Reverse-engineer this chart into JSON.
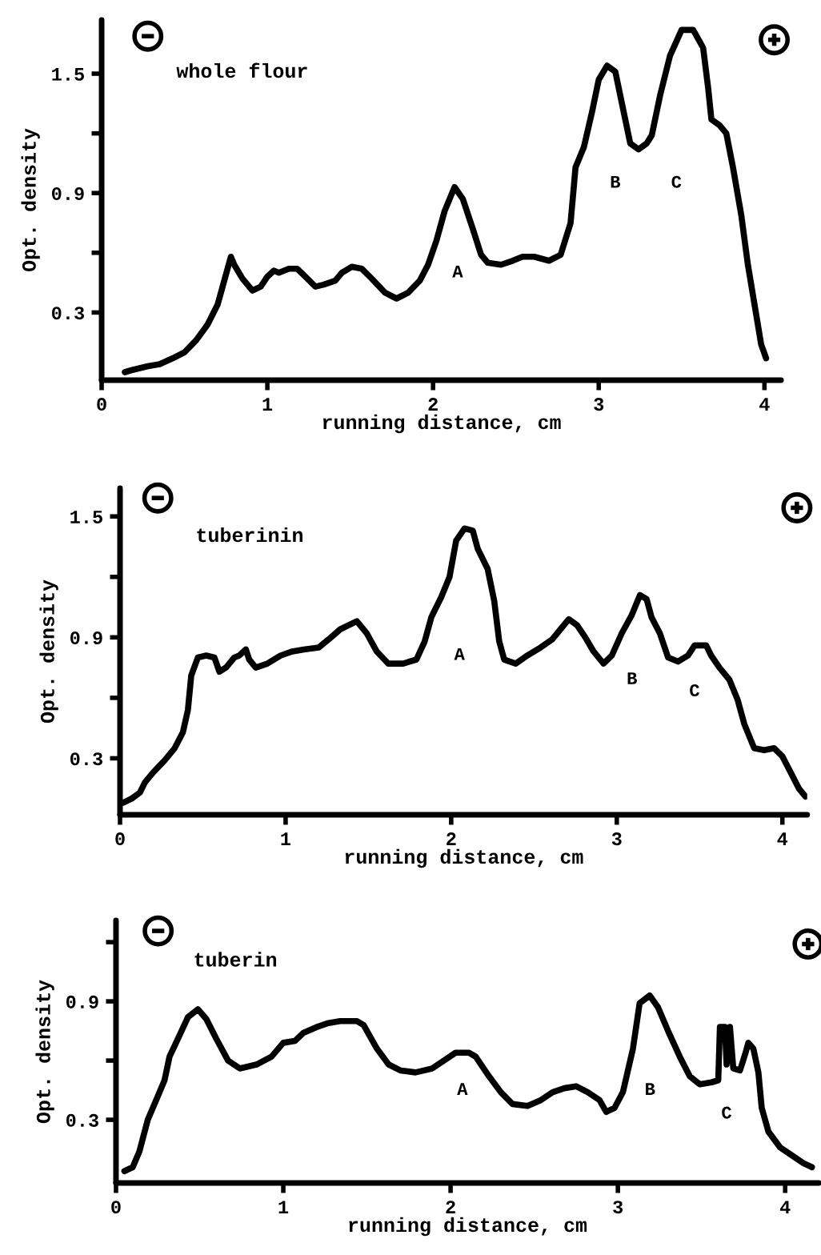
{
  "chart_data": [
    {
      "type": "line",
      "title": "whole flour",
      "xlabel": "running distance, cm",
      "ylabel": "Opt. density",
      "xlim": [
        0,
        4.1
      ],
      "ylim": [
        -0.04,
        1.77
      ],
      "xticks": [
        0,
        1,
        2,
        3,
        4
      ],
      "yticks": [
        {
          "value": 0.3,
          "label": "0.3"
        },
        {
          "value": 0.6,
          "label": null
        },
        {
          "value": 0.9,
          "label": "0.9"
        },
        {
          "value": 1.2,
          "label": null
        },
        {
          "value": 1.5,
          "label": "1.5"
        }
      ],
      "grid": false,
      "series": [
        {
          "color": "#000000",
          "x": [
            0.14,
            0.18,
            0.28,
            0.35,
            0.43,
            0.5,
            0.57,
            0.64,
            0.7,
            0.74,
            0.78,
            0.8,
            0.85,
            0.91,
            0.96,
            1.0,
            1.04,
            1.07,
            1.13,
            1.18,
            1.23,
            1.29,
            1.34,
            1.41,
            1.45,
            1.51,
            1.57,
            1.63,
            1.71,
            1.78,
            1.85,
            1.92,
            1.97,
            2.02,
            2.07,
            2.13,
            2.18,
            2.24,
            2.29,
            2.33,
            2.41,
            2.48,
            2.54,
            2.61,
            2.7,
            2.77,
            2.83,
            2.86,
            2.91,
            2.96,
            3.0,
            3.05,
            3.1,
            3.14,
            3.19,
            3.24,
            3.29,
            3.32,
            3.37,
            3.43,
            3.5,
            3.57,
            3.63,
            3.66,
            3.68,
            3.73,
            3.77,
            3.81,
            3.86,
            3.9,
            3.94,
            3.98,
            4.01
          ],
          "values": [
            0.0,
            0.01,
            0.03,
            0.04,
            0.07,
            0.1,
            0.16,
            0.24,
            0.34,
            0.46,
            0.58,
            0.54,
            0.47,
            0.41,
            0.43,
            0.48,
            0.51,
            0.5,
            0.52,
            0.52,
            0.48,
            0.43,
            0.44,
            0.46,
            0.5,
            0.53,
            0.52,
            0.47,
            0.4,
            0.37,
            0.4,
            0.46,
            0.54,
            0.66,
            0.81,
            0.93,
            0.87,
            0.72,
            0.59,
            0.55,
            0.54,
            0.56,
            0.58,
            0.58,
            0.56,
            0.59,
            0.75,
            1.03,
            1.13,
            1.31,
            1.47,
            1.54,
            1.51,
            1.35,
            1.15,
            1.12,
            1.15,
            1.19,
            1.39,
            1.59,
            1.72,
            1.72,
            1.63,
            1.43,
            1.27,
            1.24,
            1.2,
            1.03,
            0.79,
            0.54,
            0.34,
            0.14,
            0.07
          ]
        }
      ],
      "annotations": [
        "A",
        "B",
        "C"
      ]
    },
    {
      "type": "line",
      "title": "tuberinin",
      "xlabel": "running distance, cm",
      "ylabel": "Opt. density",
      "xlim": [
        0,
        4.15
      ],
      "ylim": [
        0.02,
        1.64
      ],
      "xticks": [
        0,
        1,
        2,
        3,
        4
      ],
      "yticks": [
        {
          "value": 0.3,
          "label": "0.3"
        },
        {
          "value": 0.6,
          "label": null
        },
        {
          "value": 0.9,
          "label": "0.9"
        },
        {
          "value": 1.2,
          "label": null
        },
        {
          "value": 1.5,
          "label": "1.5"
        }
      ],
      "grid": false,
      "series": [
        {
          "color": "#000000",
          "x": [
            0.02,
            0.07,
            0.12,
            0.15,
            0.2,
            0.27,
            0.33,
            0.38,
            0.41,
            0.43,
            0.47,
            0.52,
            0.57,
            0.6,
            0.64,
            0.69,
            0.72,
            0.76,
            0.78,
            0.82,
            0.89,
            0.97,
            1.04,
            1.11,
            1.2,
            1.26,
            1.33,
            1.43,
            1.49,
            1.55,
            1.62,
            1.71,
            1.79,
            1.84,
            1.88,
            1.94,
            1.99,
            2.03,
            2.08,
            2.13,
            2.16,
            2.22,
            2.26,
            2.29,
            2.32,
            2.39,
            2.46,
            2.54,
            2.61,
            2.66,
            2.71,
            2.76,
            2.81,
            2.86,
            2.92,
            2.97,
            3.03,
            3.09,
            3.14,
            3.18,
            3.21,
            3.26,
            3.31,
            3.37,
            3.43,
            3.47,
            3.54,
            3.57,
            3.62,
            3.68,
            3.73,
            3.77,
            3.83,
            3.89,
            3.95,
            4.0,
            4.05,
            4.1,
            4.14
          ],
          "values": [
            0.08,
            0.1,
            0.13,
            0.18,
            0.23,
            0.29,
            0.35,
            0.43,
            0.54,
            0.71,
            0.8,
            0.81,
            0.8,
            0.73,
            0.75,
            0.8,
            0.81,
            0.84,
            0.79,
            0.75,
            0.77,
            0.81,
            0.83,
            0.84,
            0.85,
            0.89,
            0.94,
            0.98,
            0.92,
            0.83,
            0.77,
            0.77,
            0.79,
            0.88,
            1.0,
            1.1,
            1.2,
            1.38,
            1.44,
            1.43,
            1.34,
            1.24,
            1.08,
            0.88,
            0.79,
            0.77,
            0.81,
            0.85,
            0.89,
            0.94,
            0.99,
            0.96,
            0.9,
            0.83,
            0.77,
            0.81,
            0.92,
            1.01,
            1.11,
            1.09,
            1.0,
            0.92,
            0.8,
            0.78,
            0.81,
            0.86,
            0.86,
            0.81,
            0.75,
            0.69,
            0.59,
            0.47,
            0.35,
            0.34,
            0.35,
            0.31,
            0.23,
            0.15,
            0.11
          ]
        }
      ],
      "annotations": [
        "A",
        "B",
        "C"
      ]
    },
    {
      "type": "line",
      "title": "tuberin",
      "xlabel": "running distance, cm",
      "ylabel": "Opt. density",
      "xlim": [
        0,
        4.2
      ],
      "ylim": [
        -0.02,
        1.31
      ],
      "xticks": [
        0,
        1,
        2,
        3,
        4
      ],
      "yticks": [
        {
          "value": 0.3,
          "label": "0.3"
        },
        {
          "value": 0.6,
          "label": null
        },
        {
          "value": 0.9,
          "label": "0.9"
        },
        {
          "value": 1.2,
          "label": null
        }
      ],
      "grid": false,
      "series": [
        {
          "color": "#000000",
          "x": [
            0.05,
            0.1,
            0.14,
            0.19,
            0.24,
            0.29,
            0.32,
            0.37,
            0.43,
            0.49,
            0.54,
            0.6,
            0.67,
            0.74,
            0.84,
            0.93,
            1.0,
            1.07,
            1.12,
            1.2,
            1.27,
            1.34,
            1.44,
            1.48,
            1.56,
            1.63,
            1.7,
            1.79,
            1.89,
            1.96,
            2.03,
            2.11,
            2.15,
            2.23,
            2.3,
            2.37,
            2.46,
            2.54,
            2.61,
            2.68,
            2.75,
            2.82,
            2.89,
            2.93,
            2.98,
            3.03,
            3.09,
            3.13,
            3.19,
            3.24,
            3.3,
            3.37,
            3.43,
            3.49,
            3.56,
            3.6,
            3.61,
            3.64,
            3.65,
            3.67,
            3.69,
            3.73,
            3.76,
            3.78,
            3.81,
            3.84,
            3.86,
            3.9,
            3.97,
            4.04,
            4.11,
            4.16
          ],
          "values": [
            0.04,
            0.06,
            0.14,
            0.3,
            0.4,
            0.5,
            0.62,
            0.71,
            0.82,
            0.86,
            0.81,
            0.71,
            0.6,
            0.56,
            0.58,
            0.62,
            0.69,
            0.7,
            0.74,
            0.77,
            0.79,
            0.8,
            0.8,
            0.78,
            0.66,
            0.58,
            0.55,
            0.54,
            0.56,
            0.6,
            0.64,
            0.64,
            0.62,
            0.52,
            0.44,
            0.38,
            0.37,
            0.4,
            0.44,
            0.46,
            0.47,
            0.44,
            0.4,
            0.34,
            0.36,
            0.44,
            0.66,
            0.89,
            0.93,
            0.87,
            0.75,
            0.62,
            0.52,
            0.48,
            0.49,
            0.5,
            0.77,
            0.77,
            0.58,
            0.77,
            0.56,
            0.55,
            0.63,
            0.69,
            0.66,
            0.54,
            0.36,
            0.24,
            0.16,
            0.12,
            0.08,
            0.06
          ]
        }
      ],
      "annotations": [
        "A",
        "B",
        "C"
      ]
    }
  ]
}
